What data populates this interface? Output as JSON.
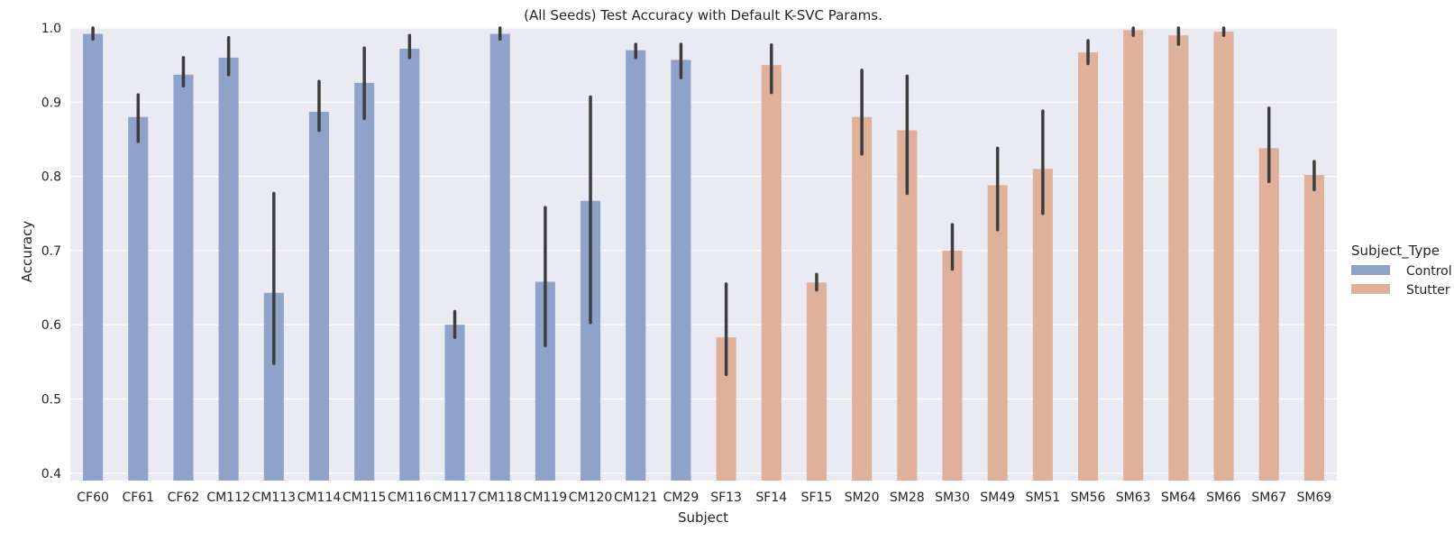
{
  "chart_data": {
    "type": "bar",
    "title": "(All Seeds) Test Accuracy with Default K-SVC Params.",
    "xlabel": "Subject",
    "ylabel": "Accuracy",
    "ylim": [
      0.39,
      1.0
    ],
    "yticks": [
      "0.4",
      "0.5",
      "0.6",
      "0.7",
      "0.8",
      "0.9",
      "1.0"
    ],
    "grid": true,
    "legend": {
      "title": "Subject_Type",
      "placement": "right",
      "entries": [
        "Control",
        "Stutter"
      ]
    },
    "colors": {
      "Control": "#8fa2c9",
      "Stutter": "#dfb09a",
      "error_bar": "#3d3d3d",
      "background": "#eaeaf2",
      "grid": "#ffffff"
    },
    "categories": [
      "CF60",
      "CF61",
      "CF62",
      "CM112",
      "CM113",
      "CM114",
      "CM115",
      "CM116",
      "CM117",
      "CM118",
      "CM119",
      "CM120",
      "CM121",
      "CM29",
      "SF13",
      "SF14",
      "SF15",
      "SM20",
      "SM28",
      "SM30",
      "SM49",
      "SM51",
      "SM56",
      "SM63",
      "SM64",
      "SM66",
      "SM67",
      "SM69"
    ],
    "series": [
      {
        "name": "Control",
        "values": [
          0.992,
          0.88,
          0.937,
          0.96,
          0.643,
          0.887,
          0.926,
          0.972,
          0.6,
          0.992,
          0.658,
          0.767,
          0.97,
          0.957,
          null,
          null,
          null,
          null,
          null,
          null,
          null,
          null,
          null,
          null,
          null,
          null,
          null,
          null
        ],
        "err_low": [
          0.985,
          0.847,
          0.922,
          0.937,
          0.548,
          0.862,
          0.878,
          0.96,
          0.583,
          0.985,
          0.572,
          0.603,
          0.96,
          0.933,
          null,
          null,
          null,
          null,
          null,
          null,
          null,
          null,
          null,
          null,
          null,
          null,
          null,
          null
        ],
        "err_high": [
          1.0,
          0.91,
          0.96,
          0.987,
          0.777,
          0.928,
          0.973,
          0.99,
          0.618,
          1.0,
          0.758,
          0.907,
          0.978,
          0.978,
          null,
          null,
          null,
          null,
          null,
          null,
          null,
          null,
          null,
          null,
          null,
          null,
          null,
          null
        ]
      },
      {
        "name": "Stutter",
        "values": [
          null,
          null,
          null,
          null,
          null,
          null,
          null,
          null,
          null,
          null,
          null,
          null,
          null,
          null,
          0.583,
          0.95,
          0.657,
          0.88,
          0.862,
          0.7,
          0.788,
          0.81,
          0.967,
          0.997,
          0.99,
          0.995,
          0.838,
          0.802
        ],
        "err_low": [
          null,
          null,
          null,
          null,
          null,
          null,
          null,
          null,
          null,
          null,
          null,
          null,
          null,
          null,
          0.533,
          0.913,
          0.647,
          0.83,
          0.777,
          0.675,
          0.728,
          0.75,
          0.952,
          0.99,
          0.978,
          0.99,
          0.793,
          0.782
        ],
        "err_high": [
          null,
          null,
          null,
          null,
          null,
          null,
          null,
          null,
          null,
          null,
          null,
          null,
          null,
          null,
          0.655,
          0.977,
          0.668,
          0.943,
          0.935,
          0.735,
          0.838,
          0.888,
          0.983,
          1.0,
          1.0,
          1.0,
          0.892,
          0.82
        ]
      }
    ]
  }
}
